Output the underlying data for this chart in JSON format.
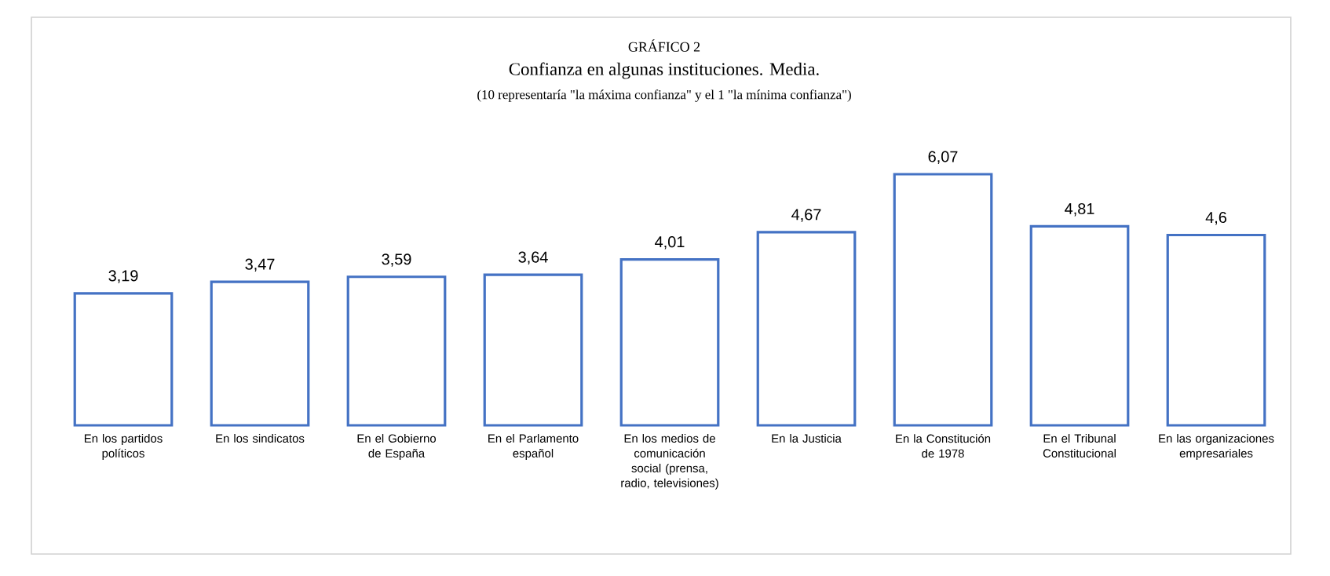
{
  "chart_data": {
    "type": "bar",
    "title": "GRÁFICO 2",
    "subtitle": "Confianza en algunas instituciones. Media.",
    "annotations": [
      "(10 representaría \"la máxima confianza\" y el 1 \"la mínima confianza\")"
    ],
    "categories": [
      "En los partidos políticos",
      "En los sindicatos",
      "En el Gobierno de España",
      "En el Parlamento español",
      "En los medios de comunicación social (prensa, radio, televisiones)",
      "En la Justicia",
      "En la Constitución de 1978",
      "En el Tribunal Constitucional",
      "En las organizaciones empresariales"
    ],
    "values": [
      3.19,
      3.47,
      3.59,
      3.64,
      4.01,
      4.67,
      6.07,
      4.81,
      4.6
    ],
    "value_labels": [
      "3,19",
      "3,47",
      "3,59",
      "3,64",
      "4,01",
      "4,67",
      "6,07",
      "4,81",
      "4,6"
    ],
    "color": "#4472c4"
  }
}
